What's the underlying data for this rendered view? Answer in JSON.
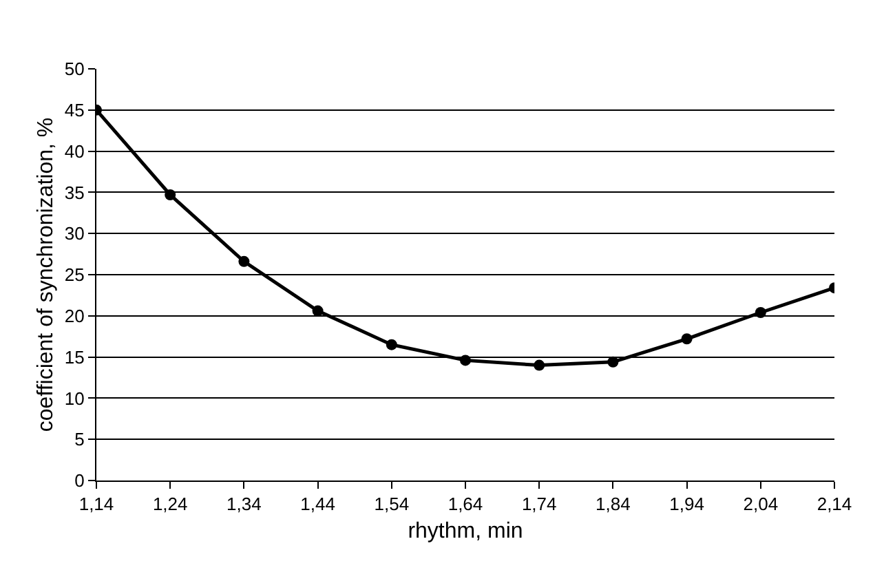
{
  "chart_data": {
    "type": "line",
    "xlabel": "rhythm, min",
    "ylabel": "coefficient of synchronization, %",
    "categories": [
      "1,14",
      "1,24",
      "1,34",
      "1,44",
      "1,54",
      "1,64",
      "1,74",
      "1,84",
      "1,94",
      "2,04",
      "2,14"
    ],
    "series": [
      {
        "color": "#000000",
        "values": [
          45,
          34.7,
          26.6,
          20.6,
          16.5,
          14.6,
          14,
          14.4,
          17.2,
          20.4,
          23.4
        ]
      }
    ],
    "ylim": [
      0,
      50
    ],
    "yticks": [
      0,
      5,
      10,
      15,
      20,
      25,
      30,
      35,
      40,
      45,
      50
    ],
    "grid": "y",
    "marker": "circle",
    "line_style": "solid"
  }
}
